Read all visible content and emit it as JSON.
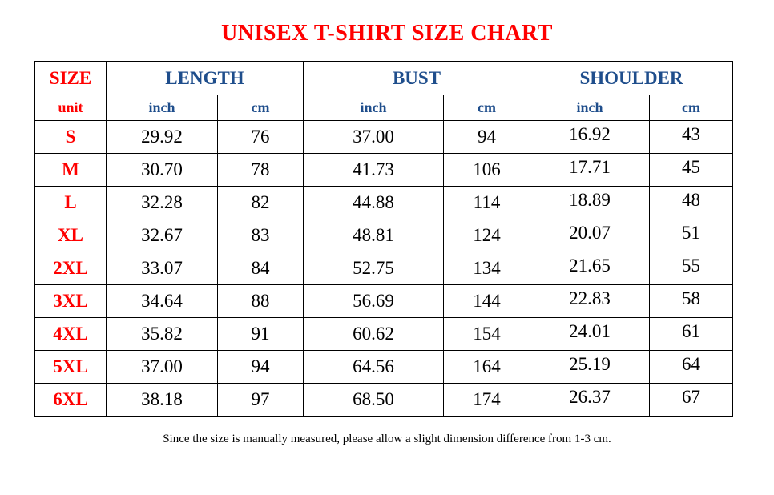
{
  "title": "UNISEX T-SHIRT SIZE CHART",
  "header": {
    "size": "SIZE",
    "groups": [
      "LENGTH",
      "BUST",
      "SHOULDER"
    ]
  },
  "units": {
    "label": "unit",
    "inch": "inch",
    "cm": "cm"
  },
  "colors": {
    "title": "#ff0000",
    "size_labels": "#ff0000",
    "headers": "#1f4e8c"
  },
  "rows": [
    {
      "size": "S",
      "length_in": "29.92",
      "length_cm": "76",
      "bust_in": "37.00",
      "bust_cm": "94",
      "shoulder_in": "16.92",
      "shoulder_cm": "43"
    },
    {
      "size": "M",
      "length_in": "30.70",
      "length_cm": "78",
      "bust_in": "41.73",
      "bust_cm": "106",
      "shoulder_in": "17.71",
      "shoulder_cm": "45"
    },
    {
      "size": "L",
      "length_in": "32.28",
      "length_cm": "82",
      "bust_in": "44.88",
      "bust_cm": "114",
      "shoulder_in": "18.89",
      "shoulder_cm": "48"
    },
    {
      "size": "XL",
      "length_in": "32.67",
      "length_cm": "83",
      "bust_in": "48.81",
      "bust_cm": "124",
      "shoulder_in": "20.07",
      "shoulder_cm": "51"
    },
    {
      "size": "2XL",
      "length_in": "33.07",
      "length_cm": "84",
      "bust_in": "52.75",
      "bust_cm": "134",
      "shoulder_in": "21.65",
      "shoulder_cm": "55"
    },
    {
      "size": "3XL",
      "length_in": "34.64",
      "length_cm": "88",
      "bust_in": "56.69",
      "bust_cm": "144",
      "shoulder_in": "22.83",
      "shoulder_cm": "58"
    },
    {
      "size": "4XL",
      "length_in": "35.82",
      "length_cm": "91",
      "bust_in": "60.62",
      "bust_cm": "154",
      "shoulder_in": "24.01",
      "shoulder_cm": "61"
    },
    {
      "size": "5XL",
      "length_in": "37.00",
      "length_cm": "94",
      "bust_in": "64.56",
      "bust_cm": "164",
      "shoulder_in": "25.19",
      "shoulder_cm": "64"
    },
    {
      "size": "6XL",
      "length_in": "38.18",
      "length_cm": "97",
      "bust_in": "68.50",
      "bust_cm": "174",
      "shoulder_in": "26.37",
      "shoulder_cm": "67"
    }
  ],
  "note": "Since the size is manually measured, please allow a slight dimension difference from 1-3 cm."
}
